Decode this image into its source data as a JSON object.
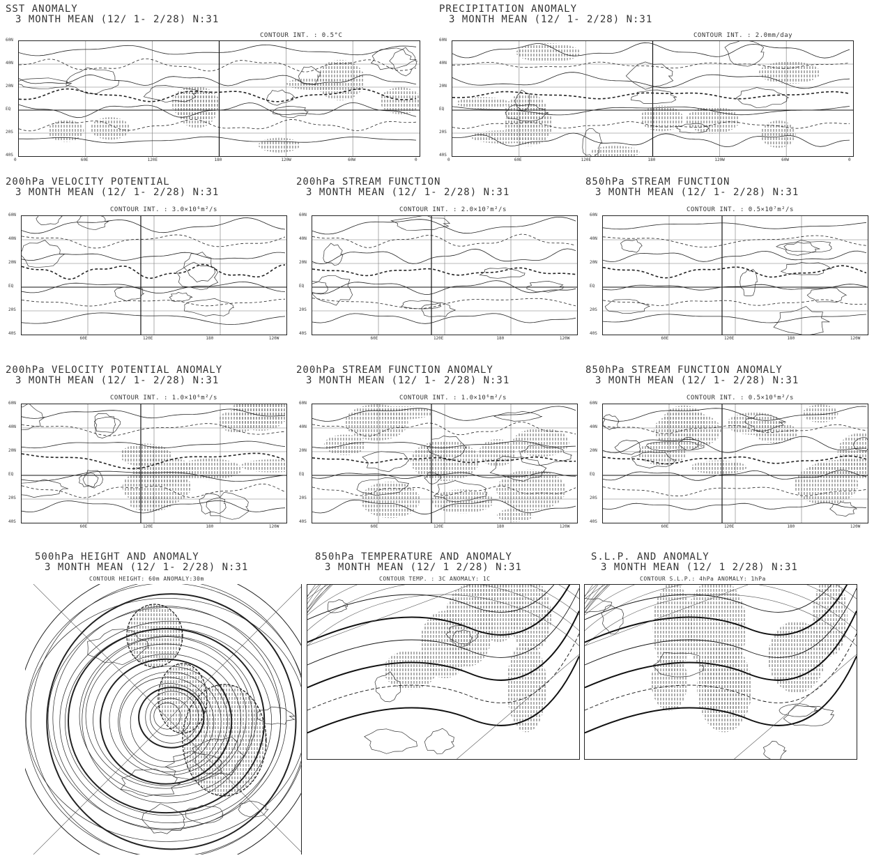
{
  "panels": {
    "sst": {
      "title1": "SST ANOMALY",
      "title2": "3 MONTH MEAN (12/ 1- 2/28) N:31",
      "contour": "CONTOUR INT. : 0.5°C",
      "lats": [
        "60N",
        "40N",
        "20N",
        "EQ",
        "20S",
        "40S"
      ],
      "lons": [
        "0",
        "60E",
        "120E",
        "180",
        "120W",
        "60W",
        "0"
      ]
    },
    "precip": {
      "title1": "PRECIPITATION ANOMALY",
      "title2": "3 MONTH MEAN (12/ 1- 2/28) N:31",
      "contour": "CONTOUR INT. : 2.0mm/day",
      "lats": [
        "60N",
        "40N",
        "20N",
        "EQ",
        "20S",
        "40S"
      ],
      "lons": [
        "0",
        "60E",
        "120E",
        "180",
        "120W",
        "60W",
        "0"
      ]
    },
    "vp200": {
      "title1": "200hPa VELOCITY POTENTIAL",
      "title2": "3 MONTH MEAN (12/ 1- 2/28) N:31",
      "contour": "CONTOUR INT. : 3.0×10⁶m²/s",
      "lats": [
        "60N",
        "40N",
        "20N",
        "EQ",
        "20S",
        "40S"
      ],
      "lons": [
        "60E",
        "120E",
        "180",
        "120W"
      ]
    },
    "sf200": {
      "title1": "200hPa STREAM FUNCTION",
      "title2": "3 MONTH MEAN (12/ 1- 2/28) N:31",
      "contour": "CONTOUR INT. : 2.0×10⁷m²/s",
      "lats": [
        "60N",
        "40N",
        "20N",
        "EQ",
        "20S",
        "40S"
      ],
      "lons": [
        "60E",
        "120E",
        "180",
        "120W"
      ]
    },
    "sf850": {
      "title1": "850hPa STREAM FUNCTION",
      "title2": "3 MONTH MEAN (12/ 1- 2/28) N:31",
      "contour": "CONTOUR INT. : 0.5×10⁷m²/s",
      "lats": [
        "60N",
        "40N",
        "20N",
        "EQ",
        "20S",
        "40S"
      ],
      "lons": [
        "60E",
        "120E",
        "180",
        "120W"
      ]
    },
    "vp200a": {
      "title1": "200hPa VELOCITY POTENTIAL ANOMALY",
      "title2": "3 MONTH MEAN (12/ 1- 2/28) N:31",
      "contour": "CONTOUR INT. : 1.0×10⁶m²/s",
      "lats": [
        "60N",
        "40N",
        "20N",
        "EQ",
        "20S",
        "40S"
      ],
      "lons": [
        "60E",
        "120E",
        "180",
        "120W"
      ]
    },
    "sf200a": {
      "title1": "200hPa STREAM FUNCTION ANOMALY",
      "title2": "3 MONTH MEAN (12/ 1- 2/28) N:31",
      "contour": "CONTOUR INT. : 1.0×10⁶m²/s",
      "lats": [
        "60N",
        "40N",
        "20N",
        "EQ",
        "20S",
        "40S"
      ],
      "lons": [
        "60E",
        "120E",
        "180",
        "120W"
      ]
    },
    "sf850a": {
      "title1": "850hPa STREAM FUNCTION ANOMALY",
      "title2": "3 MONTH MEAN (12/ 1- 2/28) N:31",
      "contour": "CONTOUR INT. : 0.5×10⁶m²/s",
      "lats": [
        "60N",
        "40N",
        "20N",
        "EQ",
        "20S",
        "40S"
      ],
      "lons": [
        "60E",
        "120E",
        "180",
        "120W"
      ]
    },
    "h500": {
      "title1": "500hPa HEIGHT AND ANOMALY",
      "title2": "3 MONTH MEAN (12/ 1- 2/28) N:31",
      "contour": "CONTOUR HEIGHT: 60m ANOMALY:30m"
    },
    "t850": {
      "title1": "850hPa TEMPERATURE AND ANOMALY",
      "title2": "3 MONTH MEAN (12/ 1 2/28) N:31",
      "contour": "CONTOUR TEMP. : 3C ANOMALY: 1C"
    },
    "slp": {
      "title1": "S.L.P. AND ANOMALY",
      "title2": "3 MONTH MEAN (12/ 1 2/28) N:31",
      "contour": "CONTOUR S.L.P.: 4hPa ANOMALY: 1hPa"
    }
  }
}
